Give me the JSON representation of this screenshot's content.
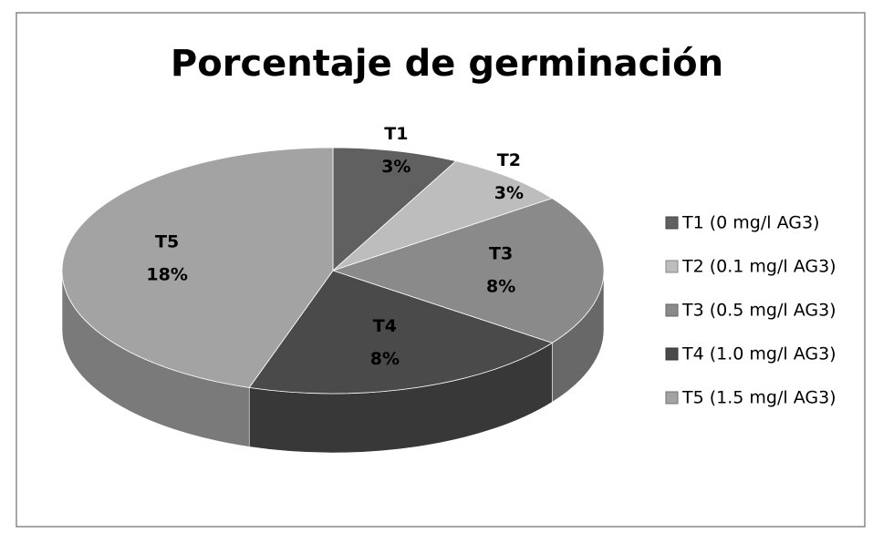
{
  "chart_data": {
    "type": "pie3d",
    "title": "Porcentaje de germinación",
    "categories": [
      "T1",
      "T2",
      "T3",
      "T4",
      "T5"
    ],
    "values": [
      3,
      3,
      8,
      8,
      18
    ],
    "value_labels": [
      "3%",
      "3%",
      "8%",
      "8%",
      "18%"
    ],
    "legend_labels": [
      "T1  (0 mg/l AG3)",
      "T2  (0.1 mg/l AG3)",
      "T3  (0.5 mg/l AG3)",
      "T4  (1.0 mg/l AG3)",
      "T5  (1.5 mg/l AG3)"
    ],
    "colors": [
      "#606060",
      "#bdbdbd",
      "#8a8a8a",
      "#4a4a4a",
      "#a3a3a3"
    ],
    "legend": "right"
  }
}
